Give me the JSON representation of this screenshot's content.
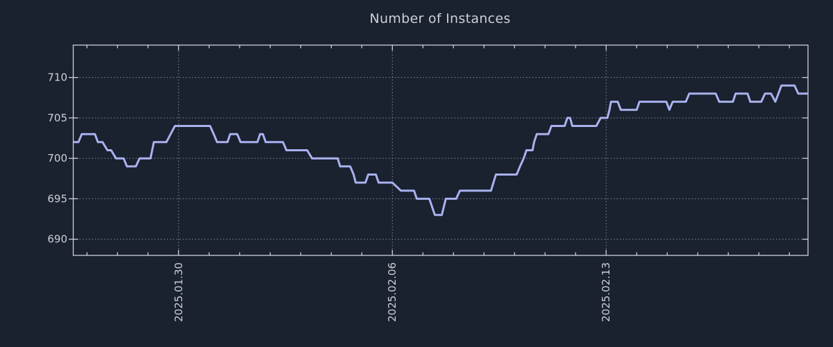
{
  "title": "Number of Instances",
  "colors": {
    "background": "#1a212f",
    "line": "#a9b2ef",
    "text": "#ccd1d9",
    "grid": "#a6acb6",
    "spine": "#ccd1d9"
  },
  "chart_data": {
    "type": "line",
    "title": "Number of Instances",
    "xlabel": "",
    "ylabel": "",
    "legend": "none",
    "grid": "dotted gridlines at major ticks, both axes",
    "x_unit": "fractional days since 2025-01-26 00:00",
    "xlim": [
      0.55,
      24.61
    ],
    "ylim": [
      688,
      714
    ],
    "yticks": [
      690,
      695,
      700,
      705,
      710
    ],
    "xticks": [
      {
        "label": "2025.01.30",
        "day": 4
      },
      {
        "label": "2025.02.06",
        "day": 11
      },
      {
        "label": "2025.02.13",
        "day": 18
      }
    ],
    "x_minor_tick_days": [
      1,
      2,
      3,
      4,
      5,
      6,
      7,
      8,
      9,
      10,
      11,
      12,
      13,
      14,
      15,
      16,
      17,
      18,
      19,
      20,
      21,
      22,
      23,
      24
    ],
    "points": [
      [
        0.56,
        702
      ],
      [
        0.72,
        702
      ],
      [
        0.83,
        703
      ],
      [
        1.26,
        703
      ],
      [
        1.36,
        702
      ],
      [
        1.51,
        702
      ],
      [
        1.67,
        701
      ],
      [
        1.79,
        701
      ],
      [
        1.95,
        700
      ],
      [
        2.2,
        700
      ],
      [
        2.31,
        699
      ],
      [
        2.6,
        699
      ],
      [
        2.72,
        700
      ],
      [
        3.08,
        700
      ],
      [
        3.19,
        702
      ],
      [
        3.6,
        702
      ],
      [
        3.74,
        703
      ],
      [
        3.88,
        704
      ],
      [
        5.03,
        704
      ],
      [
        5.15,
        703
      ],
      [
        5.26,
        702
      ],
      [
        5.6,
        702
      ],
      [
        5.69,
        703
      ],
      [
        5.92,
        703
      ],
      [
        6.03,
        702
      ],
      [
        6.58,
        702
      ],
      [
        6.67,
        703
      ],
      [
        6.76,
        703
      ],
      [
        6.85,
        702
      ],
      [
        7.42,
        702
      ],
      [
        7.53,
        701
      ],
      [
        8.21,
        701
      ],
      [
        8.37,
        700
      ],
      [
        9.21,
        700
      ],
      [
        9.29,
        699
      ],
      [
        9.62,
        699
      ],
      [
        9.73,
        698
      ],
      [
        9.8,
        697
      ],
      [
        10.12,
        697
      ],
      [
        10.21,
        698
      ],
      [
        10.46,
        698
      ],
      [
        10.55,
        697
      ],
      [
        11.0,
        697
      ],
      [
        11.28,
        696
      ],
      [
        11.71,
        696
      ],
      [
        11.8,
        695
      ],
      [
        12.21,
        695
      ],
      [
        12.39,
        693
      ],
      [
        12.62,
        693
      ],
      [
        12.75,
        695
      ],
      [
        13.09,
        695
      ],
      [
        13.21,
        696
      ],
      [
        14.23,
        696
      ],
      [
        14.39,
        698
      ],
      [
        15.07,
        698
      ],
      [
        15.18,
        699
      ],
      [
        15.3,
        700
      ],
      [
        15.39,
        701
      ],
      [
        15.59,
        701
      ],
      [
        15.64,
        702
      ],
      [
        15.73,
        703
      ],
      [
        16.11,
        703
      ],
      [
        16.21,
        704
      ],
      [
        16.64,
        704
      ],
      [
        16.73,
        705
      ],
      [
        16.82,
        705
      ],
      [
        16.89,
        704
      ],
      [
        17.68,
        704
      ],
      [
        17.82,
        705
      ],
      [
        18.04,
        705
      ],
      [
        18.11,
        706
      ],
      [
        18.16,
        707
      ],
      [
        18.38,
        707
      ],
      [
        18.48,
        706
      ],
      [
        19.0,
        706
      ],
      [
        19.09,
        707
      ],
      [
        19.97,
        707
      ],
      [
        20.07,
        706
      ],
      [
        20.18,
        707
      ],
      [
        20.61,
        707
      ],
      [
        20.72,
        708
      ],
      [
        21.59,
        708
      ],
      [
        21.7,
        707
      ],
      [
        22.15,
        707
      ],
      [
        22.24,
        708
      ],
      [
        22.63,
        708
      ],
      [
        22.72,
        707
      ],
      [
        23.08,
        707
      ],
      [
        23.2,
        708
      ],
      [
        23.4,
        708
      ],
      [
        23.54,
        707
      ],
      [
        23.74,
        709
      ],
      [
        24.17,
        709
      ],
      [
        24.29,
        708
      ],
      [
        24.61,
        708
      ]
    ]
  }
}
